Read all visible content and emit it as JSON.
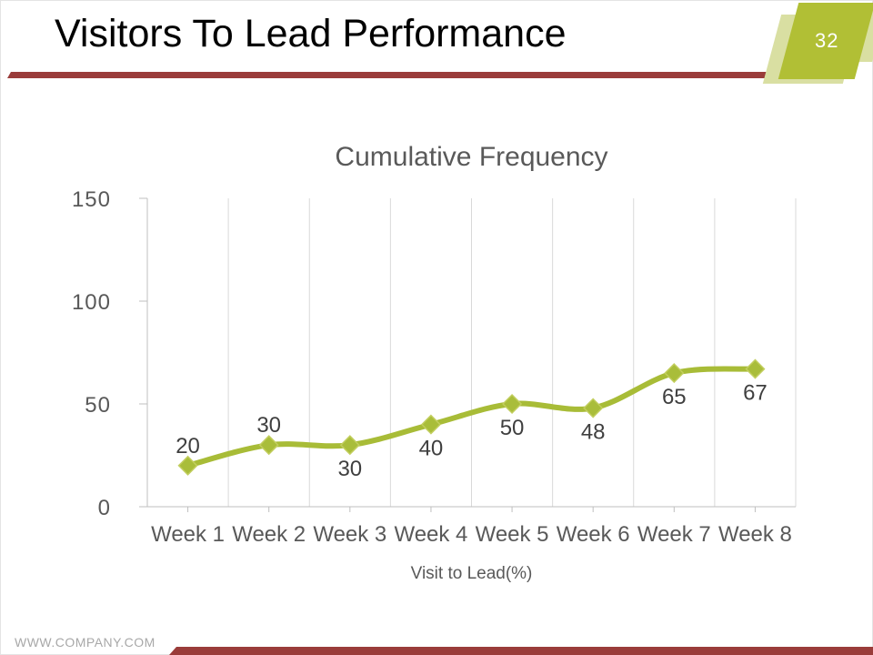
{
  "slide": {
    "title": "Visitors To Lead Performance",
    "page_number": "32",
    "footer_url": "WWW.COMPANY.COM"
  },
  "chart_data": {
    "type": "line",
    "title": "Cumulative Frequency",
    "categories": [
      "Week 1",
      "Week 2",
      "Week 3",
      "Week 4",
      "Week 5",
      "Week 6",
      "Week 7",
      "Week 8"
    ],
    "series": [
      {
        "name": "Cumulative Frequency",
        "values": [
          20,
          30,
          30,
          40,
          50,
          48,
          65,
          67
        ]
      }
    ],
    "data_labels": [
      "20",
      "30",
      "30",
      "40",
      "50",
      "48",
      "65",
      "67"
    ],
    "data_label_positions": [
      "above",
      "above",
      "below",
      "below",
      "below",
      "below",
      "below",
      "below"
    ],
    "xlabel": "Visit to Lead(%)",
    "ylabel": "",
    "ylim": [
      0,
      150
    ],
    "yticks": [
      0,
      50,
      100,
      150
    ],
    "grid": "vertical-only",
    "legend": "none",
    "smoothed": true,
    "marker": "diamond"
  },
  "colors": {
    "accent": "#9a3c3a",
    "badge_front": "#b1bf35",
    "badge_back": "#d9dfa2",
    "line": "#a8bc37",
    "marker_fill": "#a9bd3a",
    "marker_edge": "#c2ce5e",
    "title_text": "#000000",
    "chart_text": "#595959",
    "data_label_text": "#3f3f3f",
    "grid_line": "#d9d9d9",
    "axis_line": "#bfbfbf",
    "footer_text": "#a8a8a8"
  }
}
